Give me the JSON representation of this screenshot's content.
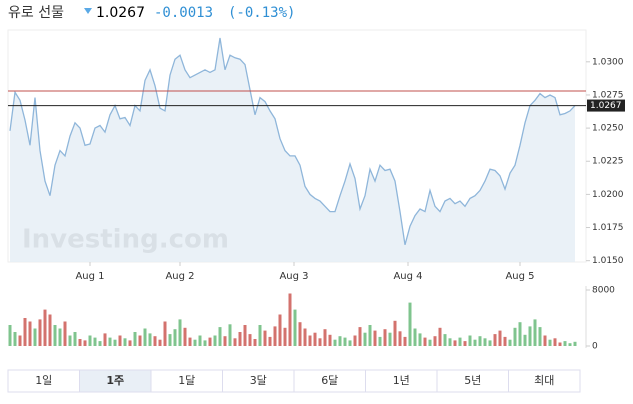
{
  "header": {
    "title": "유로 선물",
    "price": "1.0267",
    "change": "-0.0013",
    "change_pct": "(-0.13%)"
  },
  "chart_data": {
    "type": "area",
    "watermark": "Investing.com",
    "color": "#8fb6da",
    "fill": "#e5edf5",
    "values": [
      1.0248,
      1.0277,
      1.0271,
      1.0256,
      1.0237,
      1.0273,
      1.0233,
      1.021,
      1.0199,
      1.0222,
      1.0233,
      1.0229,
      1.0244,
      1.0254,
      1.025,
      1.0237,
      1.0238,
      1.025,
      1.0252,
      1.0247,
      1.026,
      1.0267,
      1.0257,
      1.0258,
      1.0252,
      1.0267,
      1.0263,
      1.0286,
      1.0294,
      1.0282,
      1.0265,
      1.0263,
      1.029,
      1.0302,
      1.0305,
      1.0294,
      1.0288,
      1.029,
      1.0292,
      1.0294,
      1.0292,
      1.0294,
      1.0318,
      1.0294,
      1.0305,
      1.0303,
      1.0302,
      1.0298,
      1.0279,
      1.026,
      1.0273,
      1.027,
      1.0263,
      1.0257,
      1.0242,
      1.0233,
      1.0229,
      1.0229,
      1.0222,
      1.0206,
      1.02,
      1.0197,
      1.0195,
      1.0191,
      1.0187,
      1.0187,
      1.0199,
      1.021,
      1.0223,
      1.0212,
      1.0189,
      1.0199,
      1.0219,
      1.021,
      1.0222,
      1.0218,
      1.0219,
      1.021,
      1.0187,
      1.0162,
      1.0176,
      1.0184,
      1.0189,
      1.0187,
      1.0203,
      1.0191,
      1.0187,
      1.0195,
      1.0197,
      1.0193,
      1.0195,
      1.0191,
      1.0197,
      1.0199,
      1.0203,
      1.021,
      1.0219,
      1.0218,
      1.0214,
      1.0204,
      1.0216,
      1.0222,
      1.0237,
      1.0254,
      1.0267,
      1.0271,
      1.0276,
      1.0273,
      1.0275,
      1.0273,
      1.026,
      1.0261,
      1.0263,
      1.0267
    ],
    "xlim": [
      0,
      115
    ],
    "xticks": [
      {
        "value": 16,
        "label": "Aug 1"
      },
      {
        "value": 34,
        "label": "Aug 2"
      },
      {
        "value": 56.8,
        "label": "Aug 3"
      },
      {
        "value": 79.6,
        "label": "Aug 4"
      },
      {
        "value": 102,
        "label": "Aug 5"
      }
    ],
    "ylim": [
      1.0149,
      1.0324
    ],
    "yticks": [
      {
        "value": 1.015,
        "label": "1.0150"
      },
      {
        "value": 1.0175,
        "label": "1.0175"
      },
      {
        "value": 1.02,
        "label": "1.0200"
      },
      {
        "value": 1.0225,
        "label": "1.0225"
      },
      {
        "value": 1.025,
        "label": "1.0250"
      },
      {
        "value": 1.0275,
        "label": "1.0275"
      },
      {
        "value": 1.03,
        "label": "1.0300"
      }
    ],
    "high_line": {
      "value": 1.0278,
      "color": "#c0504d"
    },
    "volume": {
      "values": [
        3000,
        2000,
        1500,
        4000,
        3500,
        2500,
        3800,
        5200,
        4500,
        3000,
        2500,
        3500,
        1500,
        2000,
        1000,
        800,
        1500,
        1200,
        700,
        1800,
        1200,
        900,
        1500,
        1100,
        800,
        2000,
        1500,
        2500,
        1800,
        1400,
        900,
        3500,
        1700,
        2400,
        3800,
        2600,
        1200,
        900,
        1500,
        800,
        1200,
        1500,
        2700,
        1400,
        3100,
        1100,
        2000,
        3000,
        1700,
        1000,
        3000,
        2200,
        1300,
        2800,
        4500,
        2600,
        7500,
        5200,
        3400,
        2500,
        1500,
        1900,
        1100,
        2400,
        1600,
        900,
        1400,
        1200,
        800,
        1500,
        2700,
        1900,
        3000,
        2200,
        1300,
        2400,
        1900,
        3600,
        2100,
        1300,
        6200,
        2500,
        1800,
        1200,
        900,
        1400,
        2600,
        1700,
        1100,
        800,
        1200,
        700,
        1500,
        900,
        1400,
        1100,
        800,
        1700,
        2200,
        1300,
        900,
        2600,
        3400,
        1600,
        2800,
        3800,
        2700,
        1500,
        900,
        1100,
        500,
        700,
        400,
        600
      ],
      "up_color": "#7fc48e",
      "down_color": "#d3726d",
      "ylim": [
        0,
        8000
      ],
      "yticks": [
        0,
        8000
      ]
    }
  },
  "tabs": {
    "labels": [
      "1일",
      "1주",
      "1달",
      "3달",
      "6달",
      "1년",
      "5년",
      "최대"
    ],
    "active": 1
  }
}
